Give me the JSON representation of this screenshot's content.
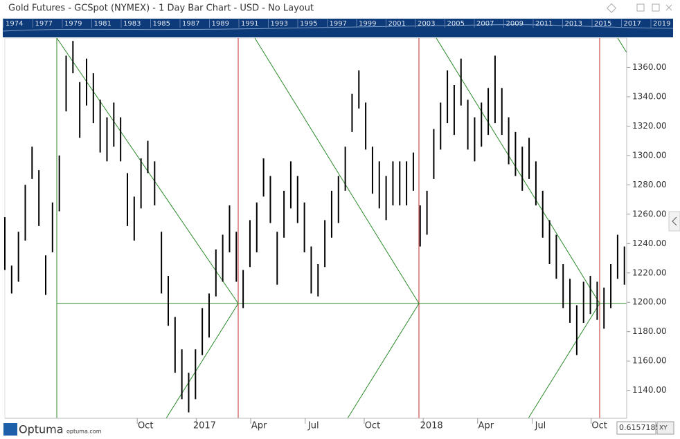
{
  "header": {
    "title": "Gold Futures - GCSpot (NYMEX) - 1 Day Bar Chart - USD - No Layout",
    "overview_years": [
      "1974",
      "1977",
      "1979",
      "1981",
      "1983",
      "1985",
      "1987",
      "1989",
      "1991",
      "1993",
      "1995",
      "1997",
      "1999",
      "2001",
      "2003",
      "2005",
      "2007",
      "2009",
      "2011",
      "2013",
      "2015",
      "2017",
      "2019"
    ]
  },
  "footer": {
    "brand": "Optuma",
    "site": "optuma.com",
    "readout": "0.6157185",
    "mode": "XY"
  },
  "chart_data": {
    "type": "bar-hl",
    "color": "#000000",
    "xlim": [
      0,
      137
    ],
    "ylim": [
      1121,
      1380
    ],
    "xticks": [
      {
        "value": 31,
        "label": "Oct"
      },
      {
        "value": 44,
        "label": "2017"
      },
      {
        "value": 56,
        "label": "Apr"
      },
      {
        "value": 68,
        "label": "Jul"
      },
      {
        "value": 81,
        "label": "Oct"
      },
      {
        "value": 94,
        "label": "2018"
      },
      {
        "value": 106,
        "label": "Apr"
      },
      {
        "value": 118,
        "label": "Jul"
      },
      {
        "value": 131,
        "label": "Oct"
      }
    ],
    "yticks": [
      {
        "value": 1140,
        "label": "1140.00"
      },
      {
        "value": 1160,
        "label": "1160.00"
      },
      {
        "value": 1180,
        "label": "1180.00"
      },
      {
        "value": 1200,
        "label": "1200.00"
      },
      {
        "value": 1220,
        "label": "1220.00"
      },
      {
        "value": 1240,
        "label": "1240.00"
      },
      {
        "value": 1260,
        "label": "1260.00"
      },
      {
        "value": 1280,
        "label": "1280.00"
      },
      {
        "value": 1300,
        "label": "1300.00"
      },
      {
        "value": 1320,
        "label": "1320.00"
      },
      {
        "value": 1340,
        "label": "1340.00"
      },
      {
        "value": 1360,
        "label": "1360.00"
      }
    ],
    "x": [
      0,
      1.5,
      3,
      4.5,
      6,
      7.5,
      9,
      10.5,
      12,
      13.5,
      15,
      16.5,
      18,
      19.5,
      21,
      22.5,
      24,
      25.5,
      27,
      28.5,
      30,
      31.5,
      33,
      34.5,
      36,
      37.5,
      39,
      40.5,
      42,
      43.5,
      45,
      46.5,
      48,
      49.5,
      51,
      52.5,
      54,
      55.5,
      57,
      58.5,
      60,
      61.5,
      63,
      64.5,
      66,
      67.5,
      69,
      70.5,
      72,
      73.5,
      75,
      76.5,
      78,
      79.5,
      81,
      82.5,
      84,
      85.5,
      87,
      88.5,
      90,
      91.5,
      93,
      94.5,
      96,
      97.5,
      99,
      100.5,
      102,
      103.5,
      105,
      106.5,
      108,
      109.5,
      111,
      112.5,
      114,
      115.5,
      117,
      118.5,
      120,
      121.5,
      123,
      124.5,
      126,
      127.5,
      129,
      130.5,
      132,
      133.5,
      135,
      136.5
    ],
    "series": [
      {
        "name": "High",
        "values": [
          1258,
          1225,
          1248,
          1280,
          1306,
          1290,
          1232,
          1268,
          1300,
          1368,
          1378,
          1350,
          1366,
          1356,
          1338,
          1326,
          1336,
          1326,
          1288,
          1272,
          1298,
          1310,
          1296,
          1248,
          1218,
          1190,
          1168,
          1152,
          1168,
          1196,
          1206,
          1236,
          1246,
          1266,
          1248,
          1222,
          1256,
          1268,
          1298,
          1286,
          1248,
          1276,
          1296,
          1286,
          1268,
          1238,
          1226,
          1256,
          1276,
          1286,
          1306,
          1342,
          1358,
          1336,
          1306,
          1296,
          1286,
          1296,
          1296,
          1296,
          1302,
          1266,
          1276,
          1318,
          1336,
          1358,
          1348,
          1366,
          1338,
          1326,
          1336,
          1346,
          1368,
          1346,
          1326,
          1316,
          1306,
          1312,
          1296,
          1276,
          1256,
          1246,
          1226,
          1216,
          1198,
          1214,
          1218,
          1214,
          1210,
          1226,
          1246,
          1238
        ]
      },
      {
        "name": "Low",
        "values": [
          1222,
          1206,
          1214,
          1242,
          1284,
          1252,
          1205,
          1234,
          1262,
          1330,
          1356,
          1312,
          1334,
          1322,
          1302,
          1296,
          1306,
          1296,
          1252,
          1242,
          1264,
          1288,
          1266,
          1206,
          1184,
          1152,
          1134,
          1125,
          1134,
          1164,
          1176,
          1204,
          1214,
          1234,
          1214,
          1196,
          1224,
          1234,
          1272,
          1254,
          1212,
          1244,
          1264,
          1254,
          1234,
          1206,
          1204,
          1224,
          1244,
          1254,
          1276,
          1316,
          1332,
          1304,
          1274,
          1264,
          1256,
          1266,
          1266,
          1266,
          1276,
          1238,
          1246,
          1284,
          1304,
          1322,
          1314,
          1334,
          1304,
          1296,
          1306,
          1314,
          1322,
          1314,
          1294,
          1286,
          1276,
          1284,
          1266,
          1244,
          1226,
          1216,
          1196,
          1186,
          1164,
          1186,
          1192,
          1188,
          1182,
          1196,
          1216,
          1212
        ]
      }
    ]
  }
}
